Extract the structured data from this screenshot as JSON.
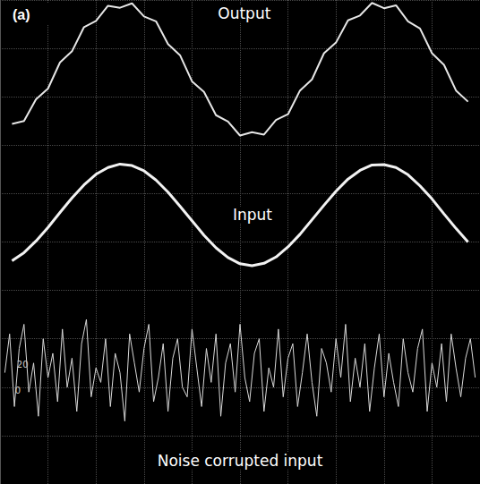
{
  "chart_data": {
    "type": "line",
    "panel_label": "(a)",
    "xlim": [
      0,
      10
    ],
    "ylim": [
      0,
      10
    ],
    "xticks": [
      0,
      1,
      2,
      3,
      4,
      5,
      6,
      7,
      8,
      9,
      10
    ],
    "yticks": [
      0,
      1,
      2,
      3,
      4,
      5,
      6,
      7,
      8,
      9,
      10
    ],
    "grid": true,
    "tick_labels": false,
    "series": [
      {
        "name": "Output",
        "color": "#e6e6e6",
        "label_x": 5.09,
        "label_y": 9.72,
        "x": [
          0.25,
          0.5,
          0.75,
          1.0,
          1.25,
          1.5,
          1.75,
          2.0,
          2.25,
          2.5,
          2.75,
          3.0,
          3.25,
          3.5,
          3.75,
          4.0,
          4.25,
          4.5,
          4.75,
          5.0,
          5.25,
          5.5,
          5.75,
          6.0,
          6.25,
          6.5,
          6.75,
          7.0,
          7.25,
          7.5,
          7.75,
          8.0,
          8.25,
          8.5,
          8.75,
          9.0,
          9.25,
          9.5,
          9.75
        ],
        "values": [
          7.44,
          7.5,
          7.95,
          8.17,
          8.71,
          8.94,
          9.44,
          9.57,
          9.88,
          9.84,
          9.93,
          9.66,
          9.56,
          9.09,
          8.86,
          8.32,
          8.1,
          7.62,
          7.49,
          7.2,
          7.27,
          7.22,
          7.52,
          7.64,
          8.13,
          8.36,
          8.9,
          9.12,
          9.58,
          9.68,
          9.94,
          9.83,
          9.89,
          9.56,
          9.41,
          8.9,
          8.66,
          8.13,
          7.9
        ]
      },
      {
        "name": "Input",
        "color": "#f2f2f2",
        "label_x": 5.26,
        "label_y": 5.56,
        "x": [
          0.25,
          0.5,
          0.75,
          1.0,
          1.25,
          1.5,
          1.75,
          2.0,
          2.25,
          2.5,
          2.75,
          3.0,
          3.25,
          3.5,
          3.75,
          4.0,
          4.25,
          4.5,
          4.75,
          5.0,
          5.25,
          5.5,
          5.75,
          6.0,
          6.25,
          6.5,
          6.75,
          7.0,
          7.25,
          7.5,
          7.75,
          8.0,
          8.25,
          8.5,
          8.75,
          9.0,
          9.25,
          9.5,
          9.75
        ],
        "values": [
          4.61,
          4.78,
          5.02,
          5.3,
          5.61,
          5.91,
          6.18,
          6.4,
          6.54,
          6.61,
          6.58,
          6.47,
          6.28,
          6.03,
          5.74,
          5.44,
          5.14,
          4.88,
          4.68,
          4.55,
          4.51,
          4.56,
          4.69,
          4.9,
          5.16,
          5.46,
          5.76,
          6.05,
          6.3,
          6.48,
          6.59,
          6.6,
          6.54,
          6.39,
          6.16,
          5.89,
          5.58,
          5.28,
          5.0
        ]
      },
      {
        "name": "Noise corrupted input",
        "color": "#d9d9d9",
        "label_x": 5.0,
        "label_y": 0.48,
        "x": [
          0.1,
          0.2,
          0.3,
          0.4,
          0.5,
          0.6,
          0.7,
          0.8,
          0.9,
          1.0,
          1.1,
          1.2,
          1.3,
          1.4,
          1.5,
          1.6,
          1.7,
          1.8,
          1.9,
          2.0,
          2.1,
          2.2,
          2.3,
          2.4,
          2.5,
          2.6,
          2.7,
          2.8,
          2.9,
          3.0,
          3.1,
          3.2,
          3.3,
          3.4,
          3.5,
          3.6,
          3.7,
          3.8,
          3.9,
          4.0,
          4.1,
          4.2,
          4.3,
          4.4,
          4.5,
          4.6,
          4.7,
          4.8,
          4.9,
          5.0,
          5.1,
          5.2,
          5.3,
          5.4,
          5.5,
          5.6,
          5.7,
          5.8,
          5.9,
          6.0,
          6.1,
          6.2,
          6.3,
          6.4,
          6.5,
          6.6,
          6.7,
          6.8,
          6.9,
          7.0,
          7.1,
          7.2,
          7.3,
          7.4,
          7.5,
          7.6,
          7.7,
          7.8,
          7.9,
          8.0,
          8.1,
          8.2,
          8.3,
          8.4,
          8.5,
          8.6,
          8.7,
          8.8,
          8.9,
          9.0,
          9.1,
          9.2,
          9.3,
          9.4,
          9.5,
          9.6,
          9.7,
          9.8,
          9.9
        ],
        "values": [
          2.3,
          3.1,
          1.6,
          2.8,
          3.3,
          1.9,
          2.5,
          1.4,
          3.0,
          2.2,
          2.7,
          1.7,
          3.2,
          2.0,
          2.6,
          1.5,
          2.9,
          3.4,
          1.8,
          2.4,
          2.1,
          3.0,
          1.6,
          2.7,
          2.3,
          1.3,
          3.1,
          2.5,
          1.9,
          2.8,
          3.3,
          1.7,
          2.2,
          2.9,
          1.5,
          2.6,
          3.0,
          2.0,
          1.8,
          3.2,
          2.4,
          1.6,
          2.8,
          2.1,
          3.1,
          1.4,
          2.5,
          2.9,
          1.9,
          3.3,
          2.2,
          1.7,
          2.7,
          3.0,
          1.5,
          2.4,
          2.0,
          3.2,
          1.8,
          2.6,
          2.9,
          1.6,
          2.3,
          3.1,
          2.1,
          1.4,
          2.8,
          2.5,
          1.9,
          3.0,
          2.2,
          3.3,
          1.7,
          2.6,
          2.0,
          2.9,
          1.5,
          2.4,
          3.1,
          1.8,
          2.7,
          2.1,
          1.6,
          3.0,
          2.3,
          1.9,
          2.8,
          3.2,
          1.5,
          2.5,
          2.0,
          2.9,
          1.7,
          3.1,
          2.4,
          1.8,
          2.6,
          3.0,
          2.2
        ]
      }
    ],
    "annotations": [
      {
        "text": "20",
        "x": 0.47,
        "y": 2.46
      },
      {
        "text": "0",
        "x": 0.37,
        "y": 1.94
      }
    ]
  }
}
